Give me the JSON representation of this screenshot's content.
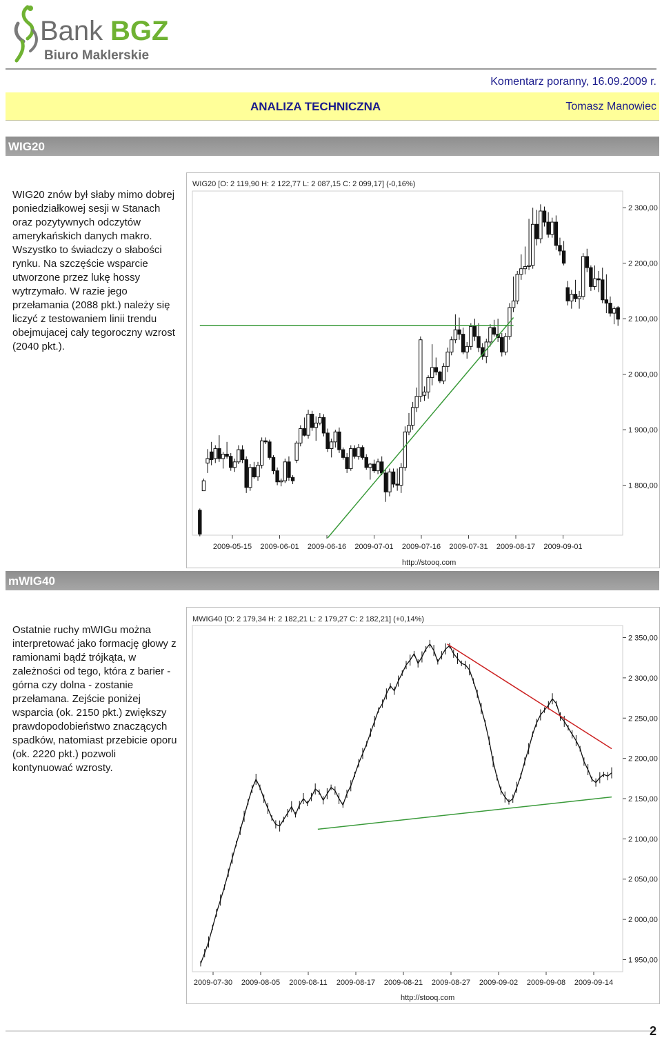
{
  "header": {
    "logo_brand": "Bank",
    "logo_brand_bold": "BGZ",
    "logo_sub": "Biuro Maklerskie",
    "comment": "Komentarz poranny, 16.09.2009 r.",
    "section_title": "ANALIZA TECHNICZNA",
    "author": "Tomasz Manowiec",
    "colors": {
      "navy": "#1a1a8c",
      "yellow": "#ffff99",
      "logo_green": "#6fb232",
      "logo_grey": "#6d6d6d"
    }
  },
  "sections": [
    {
      "title": "WIG20",
      "text": "WIG20 znów był słaby mimo dobrej poniedziałkowej sesji w Stanach oraz pozytywnych odczytów amerykańskich danych makro. Wszystko to świadczy o słabości rynku. Na szczęście wsparcie utworzone przez lukę hossy wytrzymało. W razie jego przełamania (2088 pkt.) należy się liczyć z testowaniem linii trendu obejmujacej cały tegoroczny wzrost (2040 pkt.)."
    },
    {
      "title": "mWIG40",
      "text": "Ostatnie ruchy mWIGu można interpretować jako formację głowy z ramionami bądź trójkąta, w zależności od tego, która z barier - górna czy dolna - zostanie przełamana. Zejście poniżej wsparcia (ok. 2150 pkt.) zwiększy prawdopodobieństwo znaczących spadków, natomiast przebicie oporu (ok. 2220 pkt.) pozwoli kontynuować wzrosty."
    }
  ],
  "chart_data": [
    {
      "type": "candlestick",
      "title": "WIG20 [O: 2 119,90  H: 2 122,77  L: 2 087,15  C: 2 099,17] (-0,16%)",
      "x_ticks": [
        "2009-05-15",
        "2009-06-01",
        "2009-06-16",
        "2009-07-01",
        "2009-07-16",
        "2009-07-31",
        "2009-08-17",
        "2009-09-01"
      ],
      "y_ticks": [
        "2 300,00",
        "2 200,00",
        "2 100,00",
        "2 000,00",
        "1 900,00",
        "1 800,00"
      ],
      "ylim": [
        1710,
        2330
      ],
      "source": "http://stooq.com",
      "lines": [
        {
          "name": "support",
          "color": "#3a9a3a",
          "points": [
            [
              0,
              2088
            ],
            [
              81,
              2088
            ]
          ]
        },
        {
          "name": "trend",
          "color": "#3a9a3a",
          "points": [
            [
              33,
              1705
            ],
            [
              81,
              2102
            ]
          ]
        }
      ],
      "ohlc": [
        [
          1755,
          1758,
          1708,
          1712
        ],
        [
          1790,
          1812,
          1790,
          1808
        ],
        [
          1840,
          1865,
          1822,
          1848
        ],
        [
          1860,
          1878,
          1836,
          1846
        ],
        [
          1848,
          1872,
          1840,
          1866
        ],
        [
          1866,
          1890,
          1842,
          1848
        ],
        [
          1848,
          1860,
          1830,
          1856
        ],
        [
          1856,
          1878,
          1848,
          1852
        ],
        [
          1852,
          1858,
          1826,
          1832
        ],
        [
          1832,
          1848,
          1824,
          1842
        ],
        [
          1842,
          1872,
          1838,
          1864
        ],
        [
          1864,
          1872,
          1840,
          1846
        ],
        [
          1846,
          1852,
          1786,
          1796
        ],
        [
          1796,
          1838,
          1790,
          1832
        ],
        [
          1832,
          1842,
          1812,
          1815
        ],
        [
          1815,
          1842,
          1808,
          1836
        ],
        [
          1836,
          1886,
          1830,
          1880
        ],
        [
          1880,
          1886,
          1874,
          1878
        ],
        [
          1878,
          1882,
          1846,
          1850
        ],
        [
          1850,
          1854,
          1820,
          1826
        ],
        [
          1826,
          1832,
          1800,
          1806
        ],
        [
          1806,
          1812,
          1798,
          1808
        ],
        [
          1808,
          1848,
          1804,
          1842
        ],
        [
          1842,
          1852,
          1808,
          1814
        ],
        [
          1814,
          1818,
          1802,
          1808
        ],
        [
          1845,
          1880,
          1840,
          1876
        ],
        [
          1876,
          1908,
          1870,
          1902
        ],
        [
          1902,
          1922,
          1888,
          1890
        ],
        [
          1890,
          1936,
          1884,
          1928
        ],
        [
          1928,
          1934,
          1898,
          1904
        ],
        [
          1904,
          1924,
          1880,
          1912
        ],
        [
          1912,
          1930,
          1908,
          1922
        ],
        [
          1922,
          1928,
          1888,
          1894
        ],
        [
          1894,
          1902,
          1860,
          1866
        ],
        [
          1866,
          1884,
          1850,
          1878
        ],
        [
          1878,
          1900,
          1868,
          1896
        ],
        [
          1896,
          1904,
          1858,
          1864
        ],
        [
          1864,
          1868,
          1846,
          1850
        ],
        [
          1850,
          1858,
          1822,
          1830
        ],
        [
          1830,
          1872,
          1826,
          1866
        ],
        [
          1866,
          1872,
          1848,
          1852
        ],
        [
          1852,
          1874,
          1846,
          1868
        ],
        [
          1868,
          1872,
          1846,
          1850
        ],
        [
          1850,
          1856,
          1828,
          1832
        ],
        [
          1832,
          1840,
          1810,
          1838
        ],
        [
          1838,
          1846,
          1822,
          1826
        ],
        [
          1826,
          1848,
          1820,
          1842
        ],
        [
          1842,
          1852,
          1818,
          1822
        ],
        [
          1822,
          1828,
          1770,
          1788
        ],
        [
          1788,
          1830,
          1780,
          1824
        ],
        [
          1824,
          1830,
          1796,
          1802
        ],
        [
          1802,
          1830,
          1790,
          1800
        ],
        [
          1800,
          1840,
          1786,
          1832
        ],
        [
          1832,
          1906,
          1826,
          1896
        ],
        [
          1896,
          1930,
          1890,
          1908
        ],
        [
          1908,
          1950,
          1900,
          1940
        ],
        [
          1940,
          1976,
          1932,
          1960
        ],
        [
          1960,
          2068,
          1950,
          2062
        ],
        [
          1962,
          1978,
          1952,
          1968
        ],
        [
          1968,
          1998,
          1956,
          1994
        ],
        [
          1994,
          2054,
          1980,
          2012
        ],
        [
          2012,
          2030,
          1998,
          2004
        ],
        [
          2004,
          2006,
          1984,
          1988
        ],
        [
          1988,
          2020,
          1982,
          2014
        ],
        [
          2014,
          2048,
          2004,
          2040
        ],
        [
          2040,
          2068,
          2034,
          2062
        ],
        [
          2062,
          2108,
          2056,
          2080
        ],
        [
          2080,
          2102,
          2062,
          2072
        ],
        [
          2072,
          2084,
          2036,
          2040
        ],
        [
          2040,
          2058,
          2028,
          2050
        ],
        [
          2050,
          2092,
          2044,
          2086
        ],
        [
          2086,
          2100,
          2060,
          2068
        ],
        [
          2068,
          2092,
          2040,
          2048
        ],
        [
          2048,
          2056,
          2026,
          2032
        ],
        [
          2032,
          2064,
          2020,
          2058
        ],
        [
          2058,
          2090,
          2050,
          2084
        ],
        [
          2084,
          2098,
          2068,
          2072
        ],
        [
          2072,
          2100,
          2058,
          2066
        ],
        [
          2066,
          2074,
          2032,
          2040
        ],
        [
          2040,
          2074,
          2034,
          2068
        ],
        [
          2068,
          2128,
          2062,
          2120
        ],
        [
          2120,
          2176,
          2112,
          2132
        ],
        [
          2132,
          2186,
          2126,
          2180
        ],
        [
          2180,
          2216,
          2170,
          2190
        ],
        [
          2190,
          2230,
          2180,
          2194
        ],
        [
          2194,
          2280,
          2188,
          2196
        ],
        [
          2196,
          2300,
          2190,
          2270
        ],
        [
          2270,
          2296,
          2232,
          2244
        ],
        [
          2244,
          2306,
          2236,
          2294
        ],
        [
          2294,
          2302,
          2266,
          2274
        ],
        [
          2274,
          2292,
          2246,
          2252
        ],
        [
          2252,
          2282,
          2246,
          2274
        ],
        [
          2274,
          2286,
          2224,
          2232
        ],
        [
          2232,
          2246,
          2214,
          2222
        ],
        [
          2222,
          2240,
          2196,
          2200
        ],
        [
          2156,
          2168,
          2124,
          2132
        ],
        [
          2132,
          2152,
          2118,
          2144
        ],
        [
          2144,
          2170,
          2130,
          2136
        ],
        [
          2136,
          2150,
          2118,
          2140
        ],
        [
          2140,
          2218,
          2134,
          2212
        ],
        [
          2212,
          2226,
          2184,
          2192
        ],
        [
          2192,
          2196,
          2150,
          2158
        ],
        [
          2158,
          2196,
          2152,
          2172
        ],
        [
          2172,
          2186,
          2148,
          2170
        ],
        [
          2170,
          2192,
          2128,
          2134
        ],
        [
          2134,
          2180,
          2110,
          2128
        ],
        [
          2128,
          2140,
          2104,
          2110
        ],
        [
          2110,
          2122,
          2090,
          2118
        ],
        [
          2119.9,
          2122.77,
          2087.15,
          2099.17
        ]
      ]
    },
    {
      "type": "line",
      "title": "MWIG40 [O: 2 179,34  H: 2 182,21  L: 2 179,27  C: 2 182,21] (+0,14%)",
      "x_ticks": [
        "2009-07-30",
        "2009-08-05",
        "2009-08-11",
        "2009-08-17",
        "2009-08-21",
        "2009-08-27",
        "2009-09-02",
        "2009-09-08",
        "2009-09-14"
      ],
      "y_ticks": [
        "2 350,00",
        "2 300,00",
        "2 250,00",
        "2 200,00",
        "2 150,00",
        "2 100,00",
        "2 050,00",
        "2 000,00",
        "1 950,00"
      ],
      "ylim": [
        1935,
        2365
      ],
      "source": "http://stooq.com",
      "lines": [
        {
          "name": "resistance",
          "color": "#cc2222",
          "points": [
            [
              0.6,
              2342
            ],
            [
              1.0,
              2212
            ]
          ]
        },
        {
          "name": "support",
          "color": "#3a9a3a",
          "points": [
            [
              0.285,
              2112
            ],
            [
              1.0,
              2152
            ]
          ]
        }
      ],
      "values": [
        1945,
        1958,
        1972,
        1990,
        2008,
        2024,
        2040,
        2058,
        2076,
        2094,
        2110,
        2128,
        2146,
        2162,
        2174,
        2164,
        2150,
        2138,
        2126,
        2118,
        2116,
        2124,
        2132,
        2140,
        2130,
        2142,
        2150,
        2144,
        2152,
        2162,
        2158,
        2148,
        2156,
        2164,
        2160,
        2150,
        2142,
        2156,
        2166,
        2180,
        2194,
        2206,
        2218,
        2232,
        2246,
        2260,
        2268,
        2280,
        2290,
        2284,
        2296,
        2306,
        2316,
        2322,
        2330,
        2318,
        2326,
        2336,
        2342,
        2334,
        2320,
        2328,
        2336,
        2340,
        2330,
        2324,
        2318,
        2316,
        2310,
        2296,
        2280,
        2262,
        2244,
        2222,
        2196,
        2176,
        2160,
        2152,
        2146,
        2150,
        2164,
        2178,
        2196,
        2212,
        2230,
        2244,
        2254,
        2260,
        2266,
        2274,
        2268,
        2252,
        2246,
        2238,
        2230,
        2222,
        2212,
        2196,
        2186,
        2174,
        2170,
        2176,
        2180,
        2178,
        2182
      ]
    }
  ]
}
